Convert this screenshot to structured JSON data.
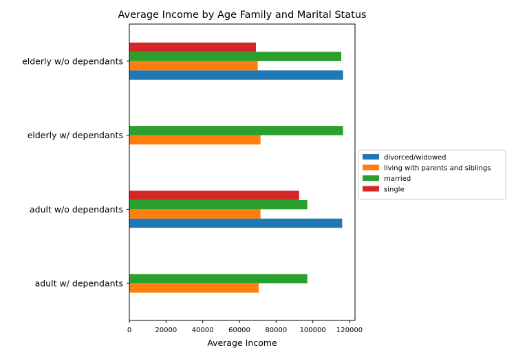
{
  "chart_data": {
    "type": "bar",
    "orientation": "horizontal",
    "title": "Average Income by Age Family and Marital Status",
    "xlabel": "Average Income",
    "ylabel": "",
    "categories": [
      "adult w/ dependants",
      "adult w/o dependants",
      "elderly w/ dependants",
      "elderly w/o dependants"
    ],
    "xlim": [
      0,
      123000
    ],
    "xticks": [
      0,
      20000,
      40000,
      60000,
      80000,
      100000,
      120000
    ],
    "xtick_labels": [
      "0",
      "20000",
      "40000",
      "60000",
      "80000",
      "100000",
      "120000"
    ],
    "grid": false,
    "legend_position": "center-right, outside plot",
    "series": [
      {
        "name": "divorced/widowed",
        "color": "#1f77b4",
        "values": [
          null,
          116000,
          null,
          116500
        ]
      },
      {
        "name": "living with parents and siblings",
        "color": "#ff7f0e",
        "values": [
          70500,
          71500,
          71500,
          70000
        ]
      },
      {
        "name": "married",
        "color": "#2ca02c",
        "values": [
          97000,
          97000,
          116500,
          115500
        ]
      },
      {
        "name": "single",
        "color": "#d62728",
        "values": [
          null,
          92500,
          null,
          69000
        ]
      }
    ]
  }
}
